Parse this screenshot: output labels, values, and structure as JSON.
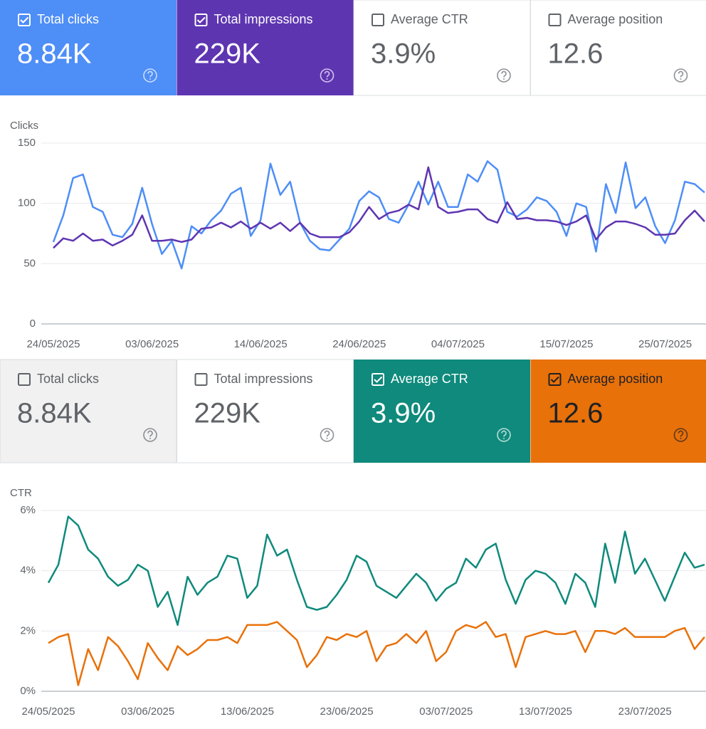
{
  "panels": [
    {
      "cards": [
        {
          "label": "Total clicks",
          "value": "8.84K",
          "checked": true,
          "color": "#4e8ef7",
          "text_color": "#ffffff"
        },
        {
          "label": "Total impressions",
          "value": "229K",
          "checked": true,
          "color": "#5e35b1",
          "text_color": "#ffffff"
        },
        {
          "label": "Average CTR",
          "value": "3.9%",
          "checked": false,
          "color": "#ffffff",
          "text_color": "#5f6368"
        },
        {
          "label": "Average position",
          "value": "12.6",
          "checked": false,
          "color": "#ffffff",
          "text_color": "#5f6368"
        }
      ],
      "chart_data": {
        "type": "line",
        "y_label": "Clicks",
        "categories": [
          "24/05/2025",
          null,
          null,
          null,
          null,
          null,
          null,
          null,
          null,
          null,
          "03/06/2025",
          null,
          null,
          null,
          null,
          null,
          null,
          null,
          null,
          null,
          null,
          "14/06/2025",
          null,
          null,
          null,
          null,
          null,
          null,
          null,
          null,
          null,
          "24/06/2025",
          null,
          null,
          null,
          null,
          null,
          null,
          null,
          null,
          null,
          "04/07/2025",
          null,
          null,
          null,
          null,
          null,
          null,
          null,
          null,
          null,
          null,
          "15/07/2025",
          null,
          null,
          null,
          null,
          null,
          null,
          null,
          null,
          null,
          "25/07/2025",
          null,
          null,
          null,
          null
        ],
        "ylim": [
          0,
          150
        ],
        "yticks": [
          0,
          50,
          100,
          150
        ],
        "grid": true,
        "series": [
          {
            "color": "#4e8ef7",
            "values": [
              68,
              90,
              121,
              124,
              97,
              93,
              74,
              72,
              83,
              113,
              83,
              58,
              69,
              46,
              81,
              75,
              86,
              94,
              108,
              113,
              73,
              86,
              133,
              107,
              118,
              84,
              69,
              62,
              61,
              70,
              79,
              102,
              110,
              105,
              87,
              84,
              99,
              118,
              99,
              118,
              97,
              97,
              124,
              118,
              135,
              128,
              93,
              89,
              95,
              105,
              102,
              93,
              73,
              100,
              97,
              60,
              116,
              92,
              134,
              96,
              105,
              81,
              67,
              86,
              118,
              116,
              109
            ]
          },
          {
            "color": "#5e35b1",
            "values": [
              63,
              71,
              69,
              75,
              69,
              70,
              65,
              69,
              74,
              90,
              69,
              69,
              70,
              68,
              70,
              79,
              80,
              84,
              80,
              85,
              79,
              84,
              79,
              84,
              77,
              84,
              75,
              72,
              72,
              72,
              76,
              85,
              97,
              87,
              92,
              94,
              99,
              95,
              130,
              97,
              92,
              93,
              95,
              95,
              87,
              84,
              101,
              87,
              88,
              86,
              86,
              85,
              82,
              85,
              90,
              70,
              80,
              85,
              85,
              83,
              80,
              74,
              74,
              75,
              86,
              94,
              85
            ]
          }
        ]
      }
    },
    {
      "cards": [
        {
          "label": "Total clicks",
          "value": "8.84K",
          "checked": false,
          "color": "#f1f1f1",
          "text_color": "#5f6368"
        },
        {
          "label": "Total impressions",
          "value": "229K",
          "checked": false,
          "color": "#ffffff",
          "text_color": "#5f6368"
        },
        {
          "label": "Average CTR",
          "value": "3.9%",
          "checked": true,
          "color": "#0f8a7c",
          "text_color": "#ffffff"
        },
        {
          "label": "Average position",
          "value": "12.6",
          "checked": true,
          "color": "#e8710a",
          "text_color": "#202124"
        }
      ],
      "chart_data": {
        "type": "line",
        "y_label": "CTR",
        "categories": [
          "24/05/2025",
          null,
          null,
          null,
          null,
          null,
          null,
          null,
          null,
          null,
          "03/06/2025",
          null,
          null,
          null,
          null,
          null,
          null,
          null,
          null,
          null,
          "13/06/2025",
          null,
          null,
          null,
          null,
          null,
          null,
          null,
          null,
          null,
          "23/06/2025",
          null,
          null,
          null,
          null,
          null,
          null,
          null,
          null,
          null,
          "03/07/2025",
          null,
          null,
          null,
          null,
          null,
          null,
          null,
          null,
          null,
          "13/07/2025",
          null,
          null,
          null,
          null,
          null,
          null,
          null,
          null,
          null,
          "23/07/2025",
          null,
          null,
          null,
          null,
          null,
          null
        ],
        "ylim": [
          0,
          6
        ],
        "yticks": [
          {
            "value": 0,
            "label": "0%"
          },
          {
            "value": 2,
            "label": "2%"
          },
          {
            "value": 4,
            "label": "4%"
          },
          {
            "value": 6,
            "label": "6%"
          }
        ],
        "grid": true,
        "series": [
          {
            "color": "#0f8a7c",
            "values": [
              3.6,
              4.2,
              5.8,
              5.5,
              4.7,
              4.4,
              3.8,
              3.5,
              3.7,
              4.2,
              4.0,
              2.8,
              3.3,
              2.2,
              3.8,
              3.2,
              3.6,
              3.8,
              4.5,
              4.4,
              3.1,
              3.5,
              5.2,
              4.5,
              4.7,
              3.7,
              2.8,
              2.7,
              2.8,
              3.2,
              3.7,
              4.5,
              4.3,
              3.5,
              3.3,
              3.1,
              3.5,
              3.9,
              3.6,
              3.0,
              3.4,
              3.6,
              4.4,
              4.1,
              4.7,
              4.9,
              3.7,
              2.9,
              3.7,
              4.0,
              3.9,
              3.6,
              2.9,
              3.9,
              3.6,
              2.8,
              4.9,
              3.6,
              5.3,
              3.9,
              4.4,
              3.7,
              3.0,
              3.8,
              4.6,
              4.1,
              4.2
            ]
          },
          {
            "color": "#e8710a",
            "values": [
              1.6,
              1.8,
              1.9,
              0.2,
              1.4,
              0.7,
              1.8,
              1.5,
              1.0,
              0.4,
              1.6,
              1.1,
              0.7,
              1.5,
              1.2,
              1.4,
              1.7,
              1.7,
              1.8,
              1.6,
              2.2,
              2.2,
              2.2,
              2.3,
              2.0,
              1.7,
              0.8,
              1.2,
              1.8,
              1.7,
              1.9,
              1.8,
              2.0,
              1.0,
              1.5,
              1.6,
              1.9,
              1.6,
              2.0,
              1.0,
              1.3,
              2.0,
              2.2,
              2.1,
              2.3,
              1.8,
              1.9,
              0.8,
              1.8,
              1.9,
              2.0,
              1.9,
              1.9,
              2.0,
              1.3,
              2.0,
              2.0,
              1.9,
              2.1,
              1.8,
              1.8,
              1.8,
              1.8,
              2.0,
              2.1,
              1.4,
              1.8
            ]
          }
        ]
      }
    }
  ]
}
